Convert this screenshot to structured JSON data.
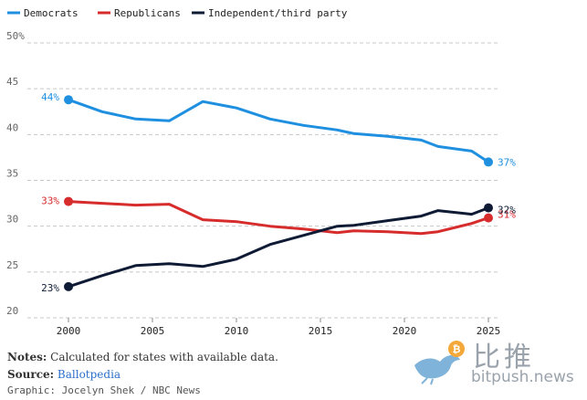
{
  "chart_data": {
    "type": "line",
    "title": "",
    "xlabel": "",
    "ylabel": "",
    "xlim": [
      1998,
      2026
    ],
    "ylim": [
      20,
      50
    ],
    "yticks": [
      20,
      25,
      30,
      35,
      40,
      45,
      50
    ],
    "ytick_labels": [
      "20",
      "25",
      "30",
      "35",
      "40",
      "45",
      "50%"
    ],
    "xticks": [
      2000,
      2005,
      2010,
      2015,
      2020,
      2025
    ],
    "xtick_labels": [
      "2000",
      "2005",
      "2010",
      "2015",
      "2020",
      "2025"
    ],
    "grid": true,
    "legend_position": "top-left",
    "series": [
      {
        "name": "Democrats",
        "color": "#1f8fe0",
        "points": [
          [
            2000,
            43.8
          ],
          [
            2002,
            42.5
          ],
          [
            2004,
            41.7
          ],
          [
            2006,
            41.5
          ],
          [
            2008,
            43.6
          ],
          [
            2010,
            42.9
          ],
          [
            2012,
            41.7
          ],
          [
            2014,
            41.0
          ],
          [
            2016,
            40.5
          ],
          [
            2017,
            40.1
          ],
          [
            2019,
            39.8
          ],
          [
            2021,
            39.4
          ],
          [
            2022,
            38.7
          ],
          [
            2024,
            38.2
          ],
          [
            2025,
            37.0
          ]
        ],
        "start_label": "44%",
        "end_label": "37%"
      },
      {
        "name": "Republicans",
        "color": "#d62c2c",
        "points": [
          [
            2000,
            32.7
          ],
          [
            2002,
            32.5
          ],
          [
            2004,
            32.3
          ],
          [
            2006,
            32.4
          ],
          [
            2008,
            30.7
          ],
          [
            2010,
            30.5
          ],
          [
            2012,
            30.0
          ],
          [
            2014,
            29.7
          ],
          [
            2016,
            29.3
          ],
          [
            2017,
            29.5
          ],
          [
            2019,
            29.4
          ],
          [
            2021,
            29.2
          ],
          [
            2022,
            29.4
          ],
          [
            2024,
            30.3
          ],
          [
            2025,
            30.9
          ]
        ],
        "start_label": "33%",
        "end_label": "31%"
      },
      {
        "name": "Independent/third party",
        "color": "#0f1b35",
        "points": [
          [
            2000,
            23.4
          ],
          [
            2002,
            24.6
          ],
          [
            2004,
            25.7
          ],
          [
            2006,
            25.9
          ],
          [
            2008,
            25.6
          ],
          [
            2010,
            26.4
          ],
          [
            2012,
            28.0
          ],
          [
            2014,
            29.0
          ],
          [
            2016,
            30.0
          ],
          [
            2017,
            30.1
          ],
          [
            2019,
            30.6
          ],
          [
            2021,
            31.1
          ],
          [
            2022,
            31.7
          ],
          [
            2024,
            31.3
          ],
          [
            2025,
            32.0
          ]
        ],
        "start_label": "23%",
        "end_label": "32%"
      }
    ]
  },
  "footer": {
    "notes_label": "Notes:",
    "notes_text": " Calculated for states with available data.",
    "source_label": "Source:",
    "source_link": "Ballotpedia",
    "graphic_credit": "Graphic: Jocelyn Shek / NBC News"
  },
  "watermark": {
    "cn_text": "比推",
    "en_text": "bitpush.news"
  }
}
